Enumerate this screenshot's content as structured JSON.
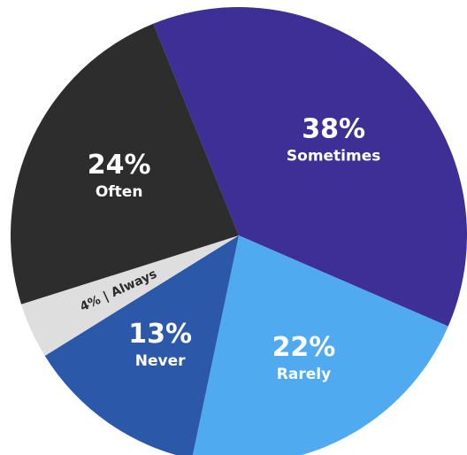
{
  "chart_data": {
    "type": "pie",
    "slices": [
      {
        "label": "Sometimes",
        "value": 38,
        "pct_label": "38%",
        "color": "#3d2f95"
      },
      {
        "label": "Rarely",
        "value": 22,
        "pct_label": "22%",
        "color": "#4faaf0"
      },
      {
        "label": "Never",
        "value": 13,
        "pct_label": "13%",
        "color": "#2c58a9"
      },
      {
        "label": "Always",
        "value": 4,
        "pct_label": "4%",
        "color": "#dedede",
        "separator": "|"
      },
      {
        "label": "Often",
        "value": 24,
        "pct_label": "24%",
        "color": "#2d2d2d"
      }
    ]
  }
}
